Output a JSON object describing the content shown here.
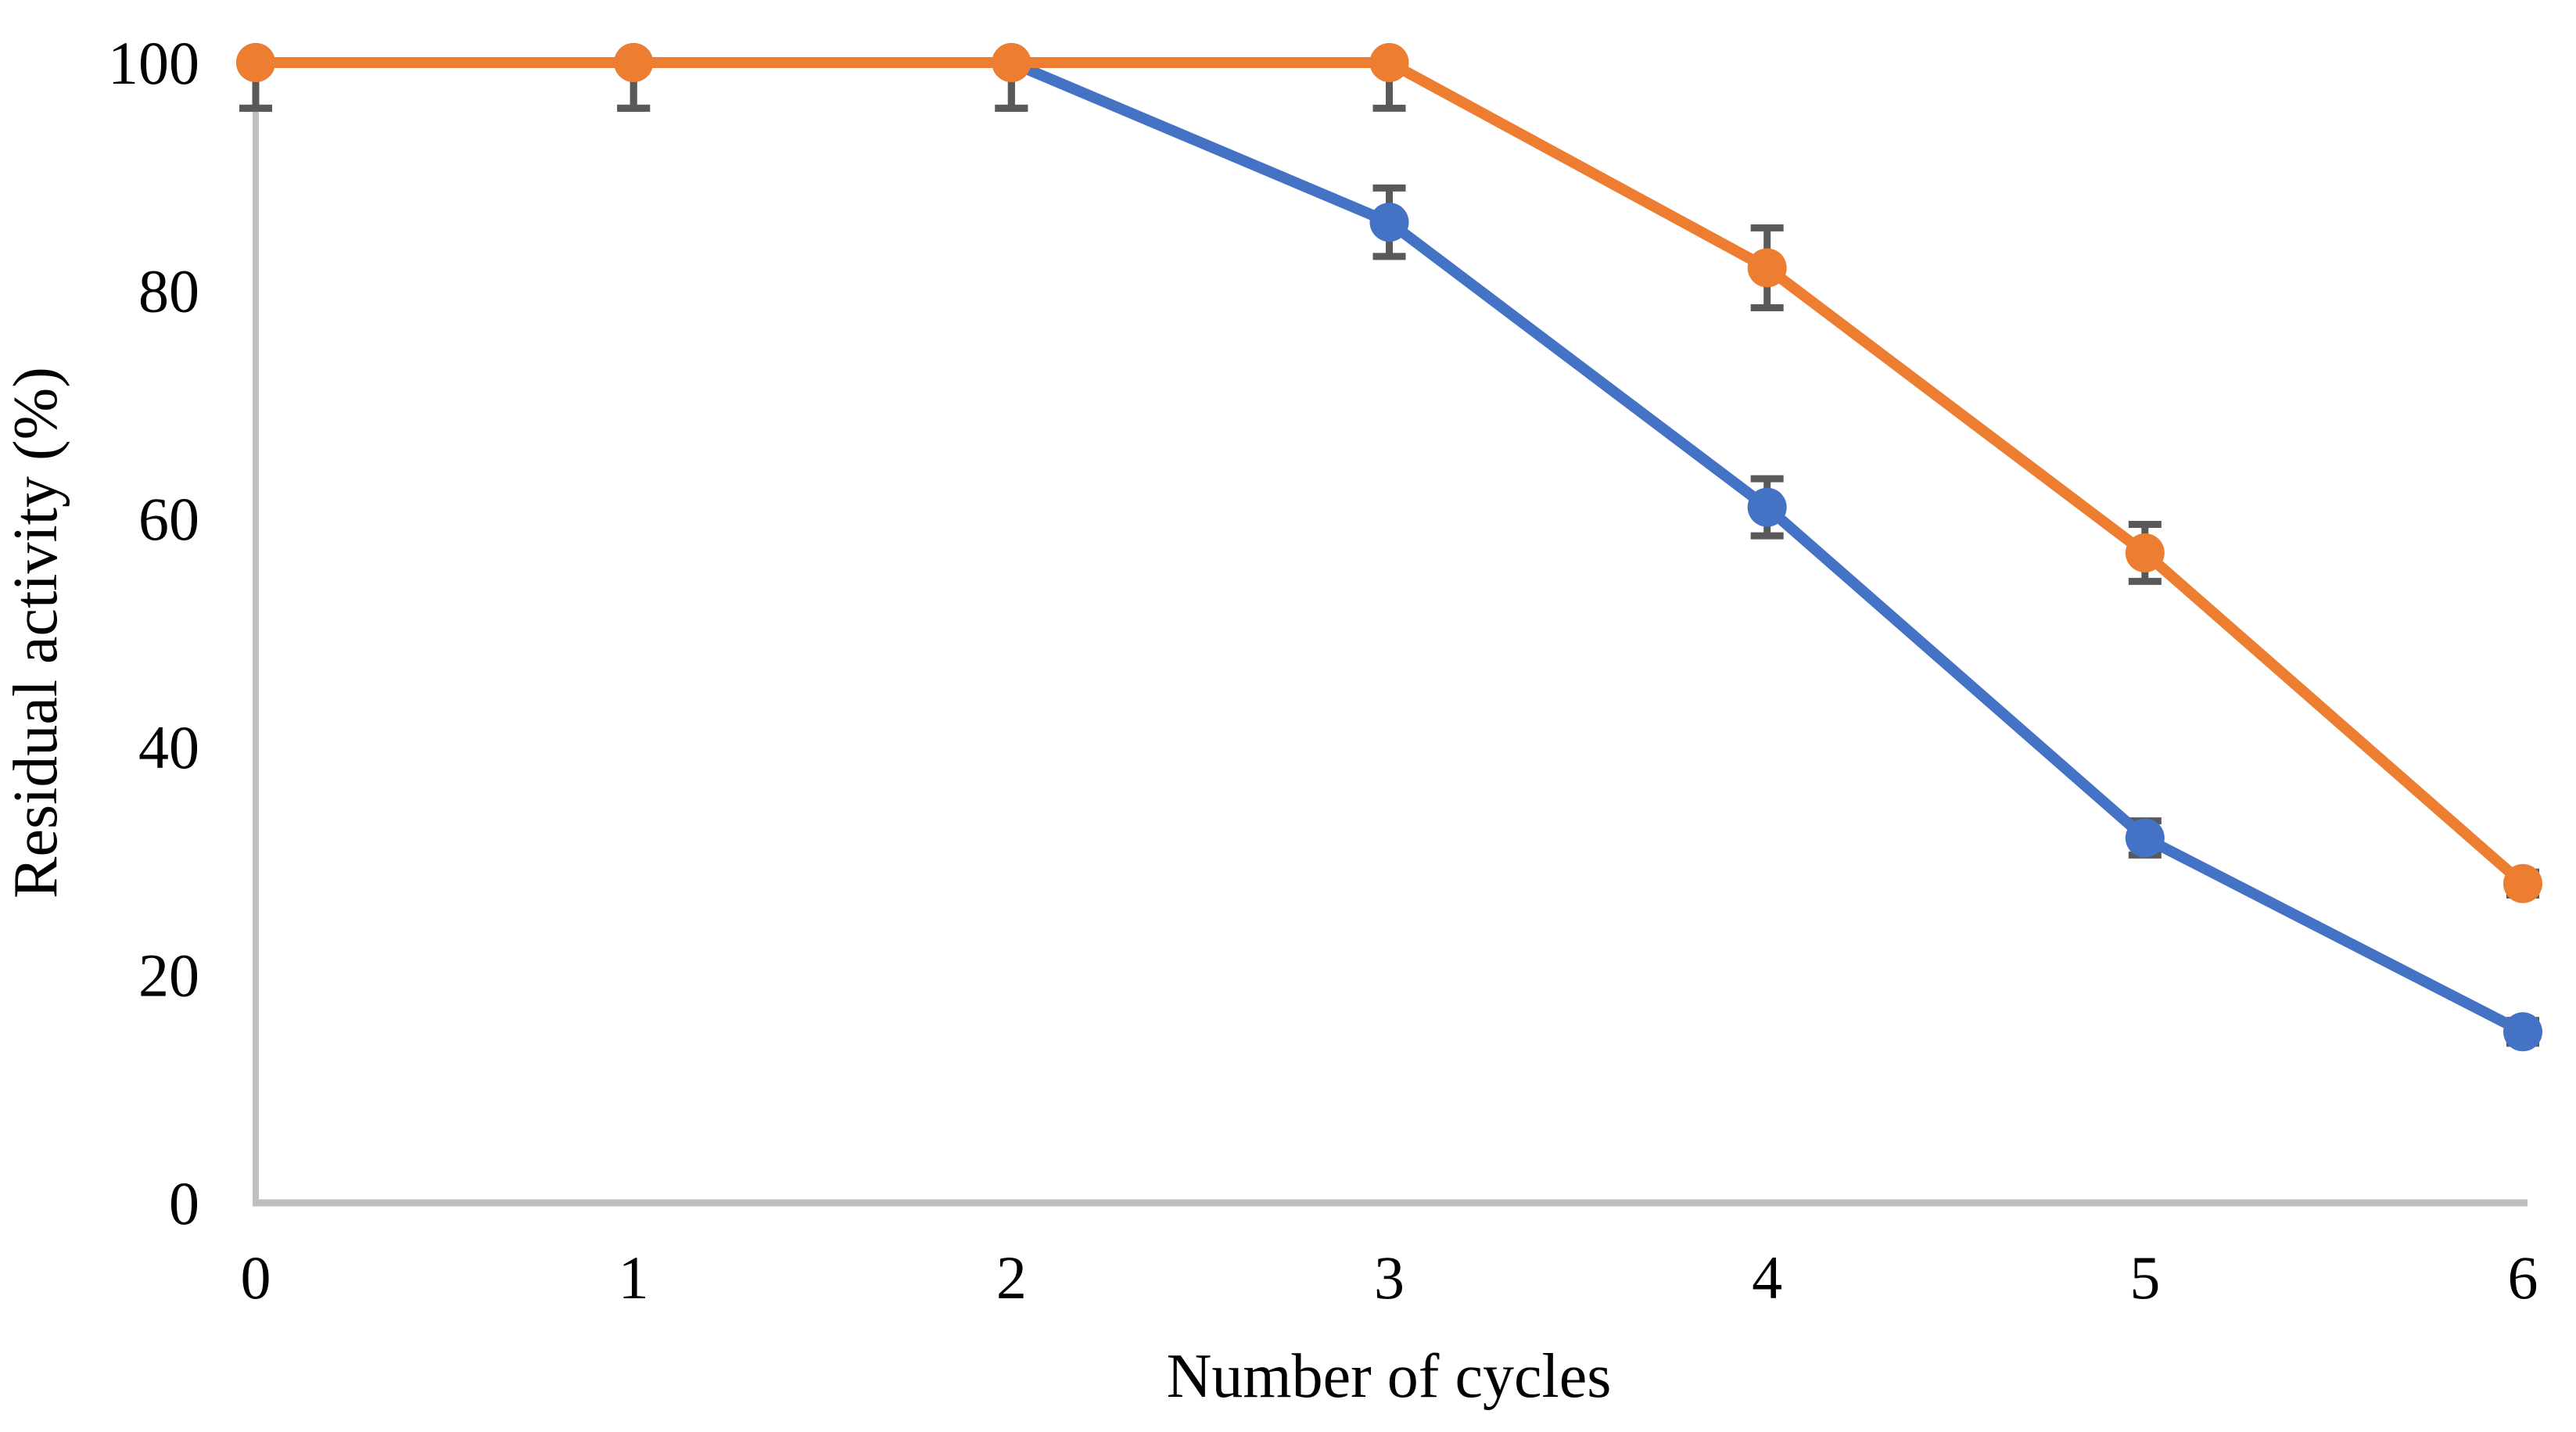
{
  "chart_data": {
    "type": "line",
    "title": "",
    "xlabel": "Number of cycles",
    "ylabel": "Residual activity (%)",
    "x": [
      0,
      1,
      2,
      3,
      4,
      5,
      6
    ],
    "xticks": [
      "0",
      "1",
      "2",
      "3",
      "4",
      "5",
      "6"
    ],
    "yticks": [
      "0",
      "20",
      "40",
      "60",
      "80",
      "100"
    ],
    "ytick_values": [
      0,
      20,
      40,
      60,
      80,
      100
    ],
    "xlim": [
      0,
      6
    ],
    "ylim": [
      0,
      100
    ],
    "grid": false,
    "legend_position": "none",
    "series": [
      {
        "name": "blue",
        "color": "#4472C4",
        "values": [
          100,
          100,
          100,
          86,
          61,
          32,
          15
        ],
        "error": [
          4,
          4,
          4,
          3,
          2.5,
          1.5,
          1
        ]
      },
      {
        "name": "orange",
        "color": "#ED7D31",
        "values": [
          100,
          100,
          100,
          100,
          82,
          57,
          28
        ],
        "error": [
          4,
          4,
          4,
          4,
          3.5,
          2.5,
          1
        ]
      }
    ],
    "error_bar_color": "#595959",
    "axis_color": "#BFBFBF",
    "tick_label_color": "#000000"
  }
}
